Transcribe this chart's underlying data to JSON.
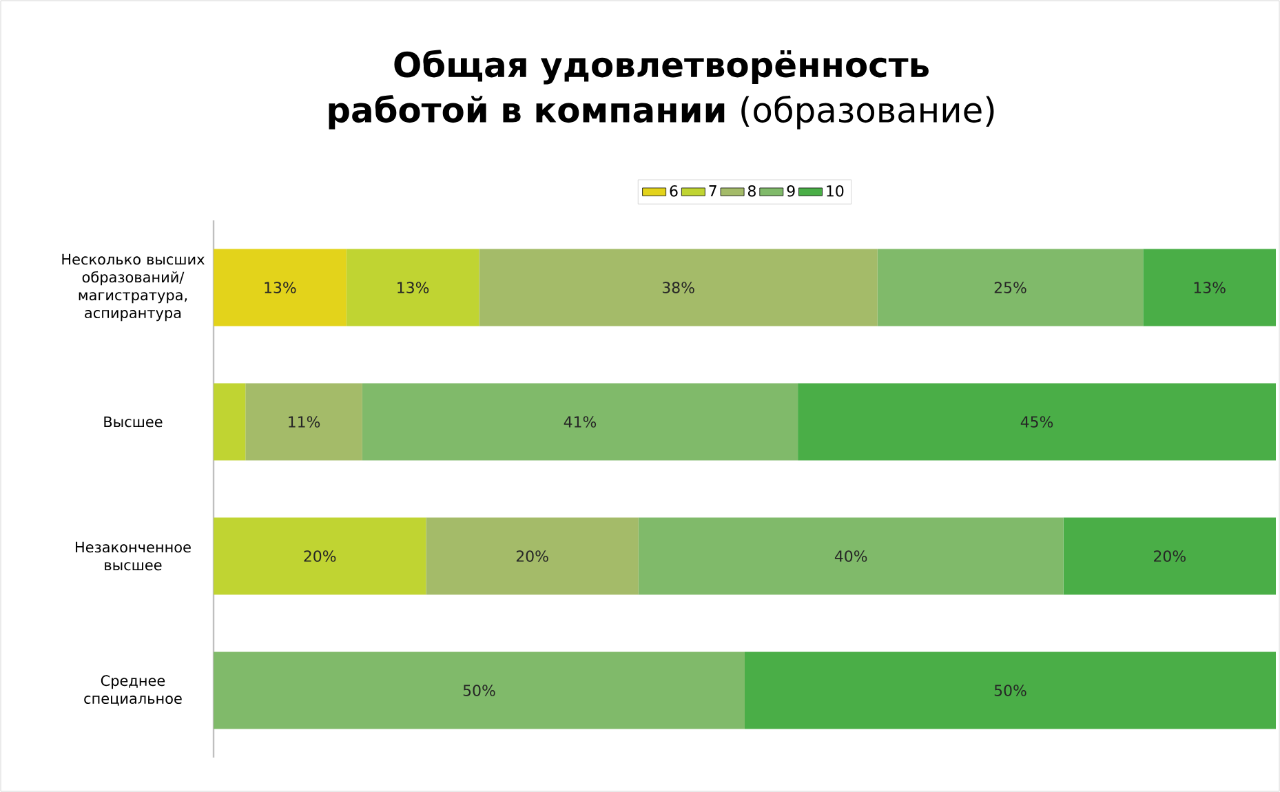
{
  "chart_data": {
    "type": "bar",
    "orientation": "horizontal",
    "stacked": true,
    "title": "**Общая удовлетворённость работой в компании** (образование)",
    "categories": [
      "Несколько высших образований/ магистратура, аспирантура",
      "Высшее",
      "Незаконченное высшее",
      "Среднее специальное"
    ],
    "tick_labels": "y",
    "legend": "top",
    "series": [
      {
        "name": "6",
        "color": "#e3d31b",
        "values": [
          12.5,
          null,
          null,
          null
        ],
        "value_labels": [
          "13%",
          null,
          null,
          null
        ]
      },
      {
        "name": "7",
        "color": "#c0d432",
        "values": [
          12.5,
          3,
          20,
          null
        ],
        "value_labels": [
          "13%",
          null,
          "20%",
          null
        ]
      },
      {
        "name": "8",
        "color": "#a4bb69",
        "values": [
          37.5,
          11,
          20,
          null
        ],
        "value_labels": [
          "38%",
          "11%",
          "20%",
          null
        ]
      },
      {
        "name": "9",
        "color": "#80ba6a",
        "values": [
          25,
          41,
          40,
          50
        ],
        "value_labels": [
          "25%",
          "41%",
          "40%",
          "50%"
        ]
      },
      {
        "name": "10",
        "color": "#4aae47",
        "values": [
          12.5,
          45,
          20,
          50
        ],
        "value_labels": [
          "13%",
          "45%",
          "20%",
          "50%"
        ]
      }
    ]
  }
}
